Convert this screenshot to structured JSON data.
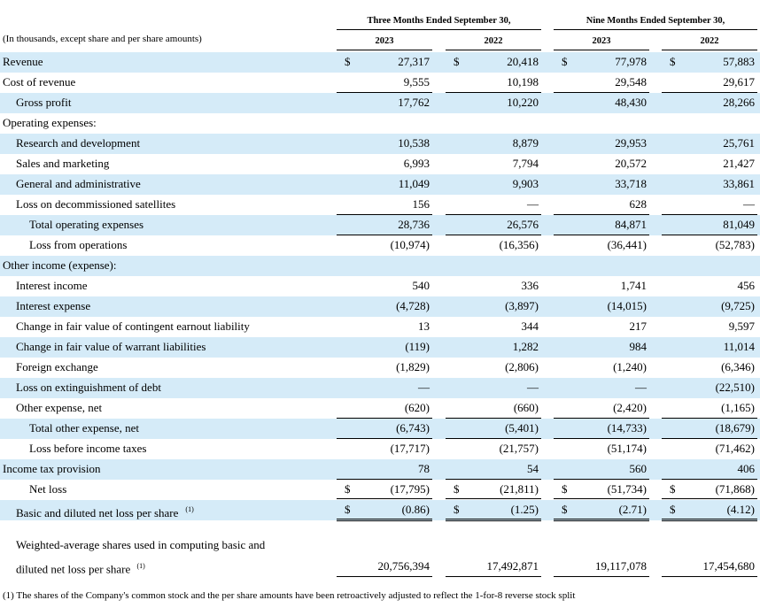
{
  "header": {
    "group_1": "Three Months Ended September 30,",
    "group_2": "Nine Months Ended September 30,",
    "units_note": "(In thousands, except share and per share amounts)",
    "years": [
      "2023",
      "2022",
      "2023",
      "2022"
    ]
  },
  "currency": "$",
  "rows": [
    {
      "label": "Revenue",
      "values": [
        "27,317",
        "20,418",
        "77,978",
        "57,883"
      ]
    },
    {
      "label": "Cost of revenue",
      "values": [
        "9,555",
        "10,198",
        "29,548",
        "29,617"
      ]
    },
    {
      "label": "Gross profit",
      "values": [
        "17,762",
        "10,220",
        "48,430",
        "28,266"
      ]
    },
    {
      "label": "Operating expenses:"
    },
    {
      "label": "Research and development",
      "values": [
        "10,538",
        "8,879",
        "29,953",
        "25,761"
      ]
    },
    {
      "label": "Sales and marketing",
      "values": [
        "6,993",
        "7,794",
        "20,572",
        "21,427"
      ]
    },
    {
      "label": "General and administrative",
      "values": [
        "11,049",
        "9,903",
        "33,718",
        "33,861"
      ]
    },
    {
      "label": "Loss on decommissioned satellites",
      "values": [
        "156",
        "—",
        "628",
        "—"
      ]
    },
    {
      "label": "Total operating expenses",
      "values": [
        "28,736",
        "26,576",
        "84,871",
        "81,049"
      ]
    },
    {
      "label": "Loss from operations",
      "values": [
        "(10,974)",
        "(16,356)",
        "(36,441)",
        "(52,783)"
      ]
    },
    {
      "label": "Other income (expense):"
    },
    {
      "label": "Interest income",
      "values": [
        "540",
        "336",
        "1,741",
        "456"
      ]
    },
    {
      "label": "Interest expense",
      "values": [
        "(4,728)",
        "(3,897)",
        "(14,015)",
        "(9,725)"
      ]
    },
    {
      "label": "Change in fair value of contingent earnout liability",
      "values": [
        "13",
        "344",
        "217",
        "9,597"
      ]
    },
    {
      "label": "Change in fair value of warrant liabilities",
      "values": [
        "(119)",
        "1,282",
        "984",
        "11,014"
      ]
    },
    {
      "label": "Foreign exchange",
      "values": [
        "(1,829)",
        "(2,806)",
        "(1,240)",
        "(6,346)"
      ]
    },
    {
      "label": "Loss on extinguishment of debt",
      "values": [
        "—",
        "—",
        "—",
        "(22,510)"
      ]
    },
    {
      "label": "Other expense, net",
      "values": [
        "(620)",
        "(660)",
        "(2,420)",
        "(1,165)"
      ]
    },
    {
      "label": "Total other expense, net",
      "values": [
        "(6,743)",
        "(5,401)",
        "(14,733)",
        "(18,679)"
      ]
    },
    {
      "label": "Loss before income taxes",
      "values": [
        "(17,717)",
        "(21,757)",
        "(51,174)",
        "(71,462)"
      ]
    },
    {
      "label": "Income tax provision",
      "values": [
        "78",
        "54",
        "560",
        "406"
      ]
    },
    {
      "label": "Net loss",
      "values": [
        "(17,795)",
        "(21,811)",
        "(51,734)",
        "(71,868)"
      ]
    },
    {
      "label": "Basic and diluted net loss per share",
      "note_marker": "(1)",
      "values": [
        "(0.86)",
        "(1.25)",
        "(2.71)",
        "(4.12)"
      ]
    },
    {
      "label": "Weighted-average shares used in computing basic and",
      "label_line_2": "diluted net loss per share",
      "note_marker": "(1)",
      "values": [
        "20,756,394",
        "17,492,871",
        "19,117,078",
        "17,454,680"
      ]
    }
  ],
  "footnote": "(1) The shares of the Company's common stock and the per share amounts have been retroactively adjusted to reflect the 1-for-8 reverse stock split"
}
